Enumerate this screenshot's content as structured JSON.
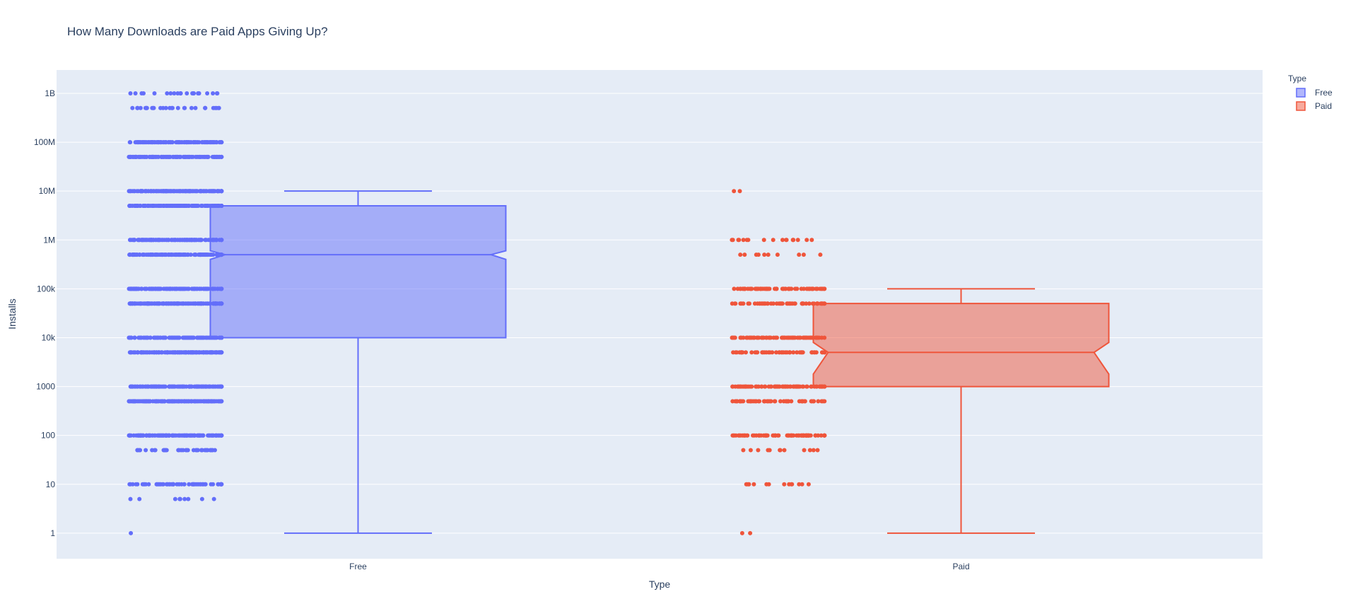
{
  "chart_data": {
    "type": "box",
    "title": "How Many Downloads are Paid Apps Giving Up?",
    "xlabel": "Type",
    "ylabel": "Installs",
    "y_scale": "log",
    "ylim": [
      0.3,
      3000000000
    ],
    "categories": [
      "Free",
      "Paid"
    ],
    "y_ticks": [
      {
        "value": 1,
        "label": "1"
      },
      {
        "value": 10,
        "label": "10"
      },
      {
        "value": 100,
        "label": "100"
      },
      {
        "value": 1000,
        "label": "1000"
      },
      {
        "value": 10000,
        "label": "10k"
      },
      {
        "value": 100000,
        "label": "100k"
      },
      {
        "value": 1000000,
        "label": "1M"
      },
      {
        "value": 10000000,
        "label": "10M"
      },
      {
        "value": 100000000,
        "label": "100M"
      },
      {
        "value": 1000000000,
        "label": "1B"
      }
    ],
    "grid": true,
    "notched": true,
    "show_points": "all",
    "legend": {
      "title": "Type",
      "placement": "top-right"
    },
    "series": [
      {
        "name": "Free",
        "color": "#636efa",
        "stats": {
          "min": 1,
          "q1": 10000,
          "median": 500000,
          "q3": 5000000,
          "max": 10000000,
          "notch_low": 400000,
          "notch_high": 600000
        },
        "points": [
          {
            "value": 1,
            "count": 1
          },
          {
            "value": 5,
            "count": 9
          },
          {
            "value": 10,
            "count": 60
          },
          {
            "value": 50,
            "count": 40
          },
          {
            "value": 100,
            "count": 150
          },
          {
            "value": 500,
            "count": 150
          },
          {
            "value": 1000,
            "count": 250
          },
          {
            "value": 5000,
            "count": 220
          },
          {
            "value": 10000,
            "count": 300
          },
          {
            "value": 50000,
            "count": 250
          },
          {
            "value": 100000,
            "count": 350
          },
          {
            "value": 500000,
            "count": 280
          },
          {
            "value": 1000000,
            "count": 400
          },
          {
            "value": 5000000,
            "count": 280
          },
          {
            "value": 10000000,
            "count": 400
          },
          {
            "value": 50000000,
            "count": 160
          },
          {
            "value": 100000000,
            "count": 180
          },
          {
            "value": 500000000,
            "count": 30
          },
          {
            "value": 1000000000,
            "count": 22
          }
        ]
      },
      {
        "name": "Paid",
        "color": "#ef553b",
        "stats": {
          "min": 1,
          "q1": 1000,
          "median": 5000,
          "q3": 50000,
          "max": 100000,
          "notch_low": 1800,
          "notch_high": 8000
        },
        "points": [
          {
            "value": 1,
            "count": 2
          },
          {
            "value": 10,
            "count": 14
          },
          {
            "value": 50,
            "count": 12
          },
          {
            "value": 100,
            "count": 80
          },
          {
            "value": 500,
            "count": 55
          },
          {
            "value": 1000,
            "count": 80
          },
          {
            "value": 5000,
            "count": 50
          },
          {
            "value": 10000,
            "count": 80
          },
          {
            "value": 50000,
            "count": 55
          },
          {
            "value": 100000,
            "count": 70
          },
          {
            "value": 500000,
            "count": 10
          },
          {
            "value": 1000000,
            "count": 18
          },
          {
            "value": 10000000,
            "count": 2
          }
        ]
      }
    ]
  }
}
